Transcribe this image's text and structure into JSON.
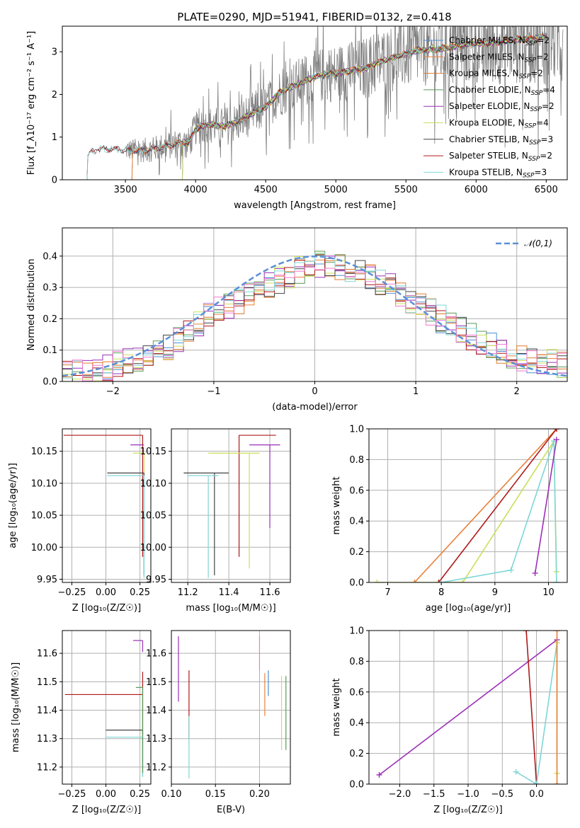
{
  "figure": {
    "title": "PLATE=0290, MJD=51941, FIBERID=0132, z=0.418"
  },
  "colors": {
    "chabrier_miles": "#4c8fd6",
    "salpeter_miles": "#e8813a",
    "kroupa_miles": "#e07b2e",
    "chabrier_elodie": "#5a9a5a",
    "salpeter_elodie": "#9b30b8",
    "kroupa_elodie": "#c9e05a",
    "chabrier_stelib": "#444444",
    "salpeter_stelib": "#b01818",
    "kroupa_stelib": "#7fd6d6",
    "data": "#7f7f7f",
    "pink": "#f07ad0",
    "gaussian": "#5b8fd6",
    "grid": "#b0b0b0"
  },
  "legend_spectrum": [
    {
      "label": "Chabrier MILES, N",
      "sub": "SSP",
      "suffix": "=2",
      "color_key": "chabrier_miles"
    },
    {
      "label": "Salpeter MILES, N",
      "sub": "SSP",
      "suffix": "=2",
      "color_key": "salpeter_miles"
    },
    {
      "label": "Kroupa MILES, N",
      "sub": "SSP",
      "suffix": "=2",
      "color_key": "kroupa_miles"
    },
    {
      "label": "Chabrier ELODIE, N",
      "sub": "SSP",
      "suffix": "=4",
      "color_key": "chabrier_elodie"
    },
    {
      "label": "Salpeter ELODIE, N",
      "sub": "SSP",
      "suffix": "=2",
      "color_key": "salpeter_elodie"
    },
    {
      "label": "Kroupa ELODIE, N",
      "sub": "SSP",
      "suffix": "=4",
      "color_key": "kroupa_elodie"
    },
    {
      "label": "Chabrier STELIB, N",
      "sub": "SSP",
      "suffix": "=3",
      "color_key": "chabrier_stelib"
    },
    {
      "label": "Salpeter STELIB, N",
      "sub": "SSP",
      "suffix": "=2",
      "color_key": "salpeter_stelib"
    },
    {
      "label": "Kroupa STELIB, N",
      "sub": "SSP",
      "suffix": "=3",
      "color_key": "kroupa_stelib"
    }
  ],
  "chart_data": [
    {
      "id": "spectrum",
      "type": "line",
      "xlabel": "wavelength [Angstrom, rest frame]",
      "ylabel": "Flux [f_λ10⁻¹⁷ erg cm⁻² s⁻¹ A⁻¹]",
      "xlim": [
        3050,
        6650
      ],
      "ylim": [
        0,
        3.6
      ],
      "xticks": [
        3500,
        4000,
        4500,
        5000,
        5500,
        6000,
        6500
      ],
      "yticks": [
        0,
        1,
        2,
        3
      ],
      "grid": false,
      "legend_position": "upper-right",
      "data_wavelength_start": 3500,
      "model_wavelength_start": 3220,
      "model_anchor_points": [
        [
          3220,
          0.0
        ],
        [
          3230,
          0.55
        ],
        [
          3260,
          0.65
        ],
        [
          3300,
          0.72
        ],
        [
          3400,
          0.72
        ],
        [
          3500,
          0.7
        ],
        [
          3600,
          0.68
        ],
        [
          3700,
          0.72
        ],
        [
          3800,
          0.8
        ],
        [
          3900,
          0.88
        ],
        [
          3950,
          0.85
        ],
        [
          4000,
          1.2
        ],
        [
          4100,
          1.3
        ],
        [
          4200,
          1.25
        ],
        [
          4300,
          1.35
        ],
        [
          4400,
          1.55
        ],
        [
          4500,
          1.7
        ],
        [
          4600,
          2.05
        ],
        [
          4700,
          2.2
        ],
        [
          4800,
          2.35
        ],
        [
          4900,
          2.45
        ],
        [
          5000,
          2.5
        ],
        [
          5100,
          2.55
        ],
        [
          5200,
          2.6
        ],
        [
          5300,
          2.75
        ],
        [
          5400,
          2.85
        ],
        [
          5500,
          2.95
        ],
        [
          5600,
          3.05
        ],
        [
          5700,
          3.05
        ],
        [
          5800,
          3.1
        ],
        [
          5900,
          3.15
        ],
        [
          6000,
          3.2
        ],
        [
          6100,
          3.2
        ],
        [
          6200,
          3.25
        ],
        [
          6300,
          3.3
        ],
        [
          6400,
          3.3
        ],
        [
          6500,
          3.35
        ]
      ]
    },
    {
      "id": "residual-histogram",
      "type": "line",
      "xlabel": "(data-model)/error",
      "ylabel": "Normed distribution",
      "xlim": [
        -2.5,
        2.5
      ],
      "ylim": [
        0,
        0.49
      ],
      "xticks": [
        -2,
        -1,
        0,
        1,
        2
      ],
      "yticks": [
        0.0,
        0.1,
        0.2,
        0.3,
        0.4
      ],
      "grid": true,
      "legend_position": "upper-right",
      "legend_label": "𝒩(0,1)",
      "bin_width": 0.1,
      "histogram_profile": [
        [
          -2.5,
          0.02
        ],
        [
          -2.0,
          0.05
        ],
        [
          -1.5,
          0.1
        ],
        [
          -1.0,
          0.22
        ],
        [
          -0.5,
          0.3
        ],
        [
          0.0,
          0.38
        ],
        [
          0.5,
          0.35
        ],
        [
          1.0,
          0.25
        ],
        [
          1.5,
          0.15
        ],
        [
          2.0,
          0.08
        ],
        [
          2.5,
          0.05
        ]
      ]
    },
    {
      "id": "age-vs-Z",
      "type": "scatter",
      "xlabel": "Z [log₁₀(Z/Z☉)]",
      "ylabel": "age  [log₁₀(age/yr)]",
      "xlim": [
        -0.32,
        0.33
      ],
      "ylim": [
        9.945,
        10.185
      ],
      "xticks": [
        -0.25,
        0.0,
        0.25
      ],
      "yticks": [
        9.95,
        10.0,
        10.05,
        10.1,
        10.15
      ],
      "grid": true,
      "points": [
        {
          "x": 0.27,
          "y": 10.175,
          "xerr": [
            0.58,
            0.0
          ],
          "yerr": [
            0.19,
            0.0
          ],
          "color_key": "salpeter_stelib"
        },
        {
          "x": 0.28,
          "y": 10.16,
          "xerr": [
            0.1,
            0.0
          ],
          "yerr": [
            0.0,
            0.0
          ],
          "color_key": "salpeter_elodie"
        },
        {
          "x": 0.28,
          "y": 10.147,
          "xerr": [
            0.08,
            0.0
          ],
          "yerr": [
            0.19,
            0.0
          ],
          "color_key": "kroupa_elodie"
        },
        {
          "x": 0.28,
          "y": 10.116,
          "xerr": [
            0.27,
            0.0
          ],
          "yerr": [
            0.16,
            0.0
          ],
          "color_key": "chabrier_stelib"
        },
        {
          "x": 0.28,
          "y": 10.112,
          "xerr": [
            0.27,
            0.0
          ],
          "yerr": [
            0.16,
            0.0
          ],
          "color_key": "kroupa_stelib"
        }
      ]
    },
    {
      "id": "age-vs-mass",
      "type": "scatter",
      "xlabel": "mass [log₁₀(M/M☉)]",
      "ylabel": "",
      "xlim": [
        11.12,
        11.7
      ],
      "ylim": [
        9.945,
        10.185
      ],
      "xticks": [
        11.2,
        11.4,
        11.6
      ],
      "yticks": [
        9.95,
        10.0,
        10.05,
        10.1,
        10.15
      ],
      "grid": true,
      "points": [
        {
          "x": 11.45,
          "y": 10.175,
          "xerr": [
            0.0,
            0.18
          ],
          "yerr": [
            0.19,
            0.0
          ],
          "color_key": "salpeter_stelib"
        },
        {
          "x": 11.6,
          "y": 10.16,
          "xerr": [
            0.1,
            0.05
          ],
          "yerr": [
            0.13,
            0.0
          ],
          "color_key": "salpeter_elodie"
        },
        {
          "x": 11.5,
          "y": 10.147,
          "xerr": [
            0.2,
            0.05
          ],
          "yerr": [
            0.18,
            0.0
          ],
          "color_key": "kroupa_elodie"
        },
        {
          "x": 11.33,
          "y": 10.116,
          "xerr": [
            0.15,
            0.07
          ],
          "yerr": [
            0.16,
            0.0
          ],
          "color_key": "chabrier_stelib"
        },
        {
          "x": 11.3,
          "y": 10.112,
          "xerr": [
            0.1,
            0.05
          ],
          "yerr": [
            0.16,
            0.0
          ],
          "color_key": "kroupa_stelib"
        }
      ]
    },
    {
      "id": "massweight-vs-age",
      "type": "line",
      "xlabel": "age  [log₁₀(age/yr)]",
      "ylabel": "mass weight",
      "xlim": [
        6.65,
        10.35
      ],
      "ylim": [
        0.0,
        1.0
      ],
      "xticks": [
        7,
        8,
        9,
        10
      ],
      "yticks": [
        0.0,
        0.2,
        0.4,
        0.6,
        0.8,
        1.0
      ],
      "grid": true,
      "series": [
        {
          "color_key": "salpeter_miles",
          "points": [
            [
              7.5,
              0.0
            ],
            [
              10.15,
              1.0
            ]
          ]
        },
        {
          "color_key": "salpeter_stelib",
          "points": [
            [
              7.95,
              0.0
            ],
            [
              10.15,
              1.0
            ]
          ]
        },
        {
          "color_key": "kroupa_elodie",
          "points": [
            [
              6.8,
              0.0
            ],
            [
              8.4,
              0.0
            ],
            [
              10.1,
              0.92
            ],
            [
              10.15,
              0.07
            ]
          ]
        },
        {
          "color_key": "kroupa_stelib",
          "points": [
            [
              8.0,
              0.0
            ],
            [
              9.3,
              0.08
            ],
            [
              10.1,
              0.92
            ],
            [
              10.15,
              0.0
            ]
          ]
        },
        {
          "color_key": "salpeter_elodie",
          "points": [
            [
              9.75,
              0.06
            ],
            [
              10.15,
              0.93
            ]
          ]
        }
      ]
    },
    {
      "id": "mass-vs-Z",
      "type": "scatter",
      "xlabel": "Z [log₁₀(Z/Z☉)]",
      "ylabel": "mass [log₁₀(M/M☉)]",
      "xlim": [
        -0.32,
        0.33
      ],
      "ylim": [
        11.14,
        11.68
      ],
      "xticks": [
        -0.25,
        0.0,
        0.25
      ],
      "yticks": [
        11.2,
        11.3,
        11.4,
        11.5,
        11.6
      ],
      "grid": true,
      "points": [
        {
          "x": 0.27,
          "y": 11.455,
          "xerr": [
            0.57,
            0.0
          ],
          "yerr": [
            0.14,
            0.08
          ],
          "color_key": "salpeter_stelib"
        },
        {
          "x": 0.27,
          "y": 11.645,
          "xerr": [
            0.07,
            0.0
          ],
          "yerr": [
            0.04,
            0.0
          ],
          "color_key": "salpeter_elodie"
        },
        {
          "x": 0.27,
          "y": 11.33,
          "xerr": [
            0.27,
            0.0
          ],
          "yerr": [
            0.16,
            0.0
          ],
          "color_key": "chabrier_stelib"
        },
        {
          "x": 0.27,
          "y": 11.305,
          "xerr": [
            0.27,
            0.0
          ],
          "yerr": [
            0.14,
            0.0
          ],
          "color_key": "kroupa_stelib"
        },
        {
          "x": 0.27,
          "y": 11.48,
          "xerr": [
            0.05,
            0.0
          ],
          "yerr": [
            0.3,
            0.0
          ],
          "color_key": "chabrier_elodie"
        }
      ]
    },
    {
      "id": "mass-vs-ebv",
      "type": "scatter",
      "xlabel": "E(B-V)",
      "ylabel": "",
      "xlim": [
        0.1,
        0.235
      ],
      "ylim": [
        11.14,
        11.68
      ],
      "xticks": [
        0.1,
        0.15,
        0.2
      ],
      "yticks": [
        11.2,
        11.3,
        11.4,
        11.5,
        11.6
      ],
      "grid": true,
      "points": [
        {
          "x": 0.108,
          "y": 11.55,
          "yerr": [
            0.12,
            0.11
          ],
          "color_key": "salpeter_elodie"
        },
        {
          "x": 0.12,
          "y": 11.46,
          "yerr": [
            0.16,
            0.08
          ],
          "color_key": "salpeter_stelib"
        },
        {
          "x": 0.12,
          "y": 11.27,
          "yerr": [
            0.11,
            0.11
          ],
          "color_key": "kroupa_stelib"
        },
        {
          "x": 0.2,
          "y": 11.6,
          "yerr": [
            0.06,
            0.06
          ],
          "color_key": "pink"
        },
        {
          "x": 0.206,
          "y": 11.46,
          "yerr": [
            0.08,
            0.07
          ],
          "color_key": "salpeter_miles"
        },
        {
          "x": 0.21,
          "y": 11.49,
          "yerr": [
            0.04,
            0.05
          ],
          "color_key": "chabrier_miles"
        },
        {
          "x": 0.225,
          "y": 11.39,
          "yerr": [
            0.13,
            0.13
          ],
          "color_key": "kroupa_elodie"
        },
        {
          "x": 0.23,
          "y": 11.39,
          "yerr": [
            0.13,
            0.13
          ],
          "color_key": "chabrier_elodie"
        }
      ]
    },
    {
      "id": "massweight-vs-Z",
      "type": "line",
      "xlabel": "Z [log₁₀(Z/Z☉)]",
      "ylabel": "mass weight",
      "xlim": [
        -2.45,
        0.45
      ],
      "ylim": [
        0.0,
        1.0
      ],
      "xticks": [
        -2.0,
        -1.5,
        -1.0,
        -0.5,
        0.0
      ],
      "yticks": [
        0.0,
        0.2,
        0.4,
        0.6,
        0.8,
        1.0
      ],
      "grid": true,
      "series": [
        {
          "color_key": "salpeter_elodie",
          "points": [
            [
              -2.3,
              0.06
            ],
            [
              0.3,
              0.94
            ]
          ]
        },
        {
          "color_key": "salpeter_stelib",
          "points": [
            [
              -0.15,
              1.0
            ],
            [
              0.0,
              0.0
            ]
          ]
        },
        {
          "color_key": "kroupa_stelib",
          "points": [
            [
              -0.3,
              0.08
            ],
            [
              0.0,
              0.0
            ],
            [
              0.3,
              0.92
            ]
          ]
        },
        {
          "color_key": "kroupa_elodie",
          "points": [
            [
              0.3,
              0.07
            ],
            [
              0.3,
              0.92
            ]
          ]
        },
        {
          "color_key": "salpeter_miles",
          "points": [
            [
              0.3,
              0.0
            ],
            [
              0.3,
              1.0
            ]
          ]
        }
      ]
    }
  ]
}
